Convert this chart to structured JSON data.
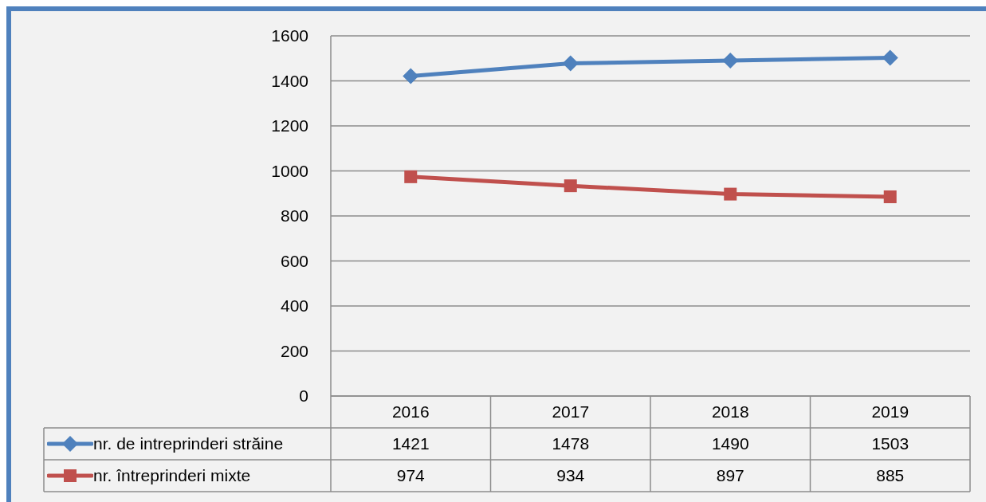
{
  "chart_data": {
    "type": "line",
    "categories": [
      "2016",
      "2017",
      "2018",
      "2019"
    ],
    "series": [
      {
        "name": "nr. de intreprinderi străine",
        "color": "#4f81bd",
        "marker": "diamond",
        "values": [
          1421,
          1478,
          1490,
          1503
        ]
      },
      {
        "name": "nr. întreprinderi  mixte",
        "color": "#c0504d",
        "marker": "square",
        "values": [
          974,
          934,
          897,
          885
        ]
      }
    ],
    "ylim": [
      0,
      1600
    ],
    "yticks": [
      0,
      200,
      400,
      600,
      800,
      1000,
      1200,
      1400,
      1600
    ],
    "grid": "y",
    "legend": "bottom",
    "data_labels": true
  }
}
